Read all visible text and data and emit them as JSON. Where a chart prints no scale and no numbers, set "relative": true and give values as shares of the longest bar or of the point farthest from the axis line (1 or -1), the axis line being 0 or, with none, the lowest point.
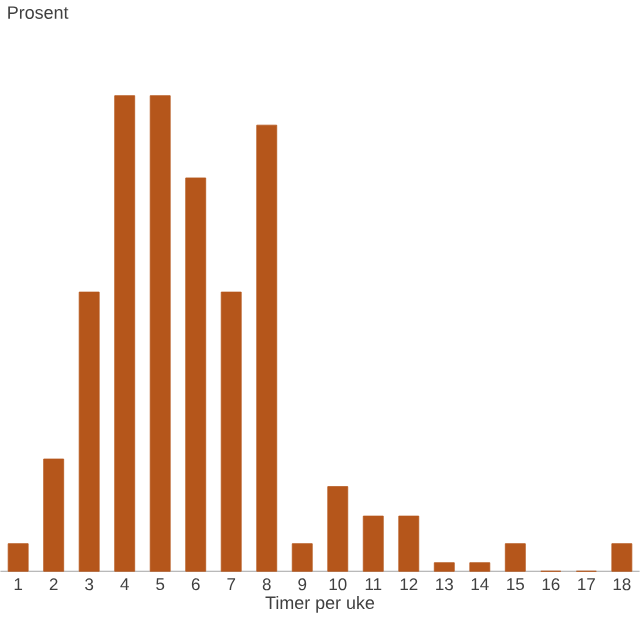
{
  "chart_data": {
    "type": "bar",
    "ylabel": "Prosent",
    "xlabel": "Timer per uke",
    "relative": true,
    "color": "#b5561b",
    "categories": [
      "1",
      "2",
      "3",
      "4",
      "5",
      "6",
      "7",
      "8",
      "9",
      "10",
      "11",
      "12",
      "13",
      "14",
      "15",
      "16",
      "17",
      "18"
    ],
    "values": [
      0.058,
      0.236,
      0.587,
      1,
      1,
      0.827,
      0.587,
      0.938,
      0.058,
      0.178,
      0.116,
      0.116,
      0.018,
      0.018,
      0.058,
      0,
      0,
      0.058
    ]
  }
}
